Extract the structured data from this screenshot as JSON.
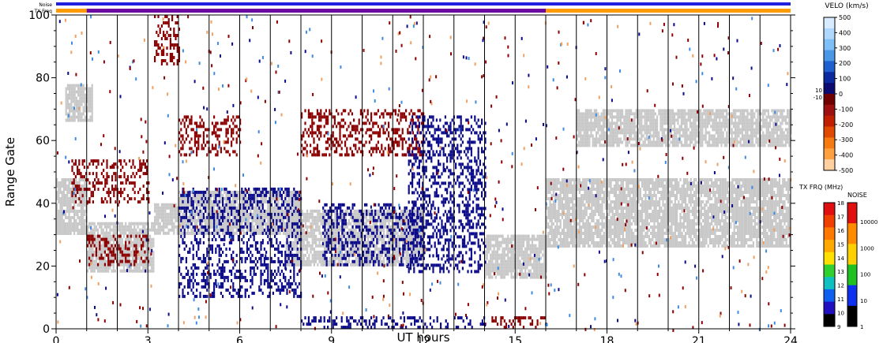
{
  "top_bars": {
    "noise_label": "Noise",
    "txfreq_label": "TX Freq"
  },
  "axes": {
    "xlabel": "UT hours",
    "ylabel": "Range Gate",
    "x_ticks": [
      "0",
      "3",
      "6",
      "9",
      "12",
      "15",
      "18",
      "21",
      "24"
    ],
    "y_ticks": [
      "0",
      "20",
      "40",
      "60",
      "80",
      "100"
    ]
  },
  "velocity_scale": {
    "title": "VELO (km/s)",
    "labels": [
      "500",
      "400",
      "300",
      "200",
      "100",
      "0",
      "-100",
      "-200",
      "-300",
      "-400",
      "-500"
    ],
    "small_labels": [
      "10",
      "-10"
    ]
  },
  "txfreq_scale": {
    "title": "TX FRQ (MHz)",
    "labels": [
      "18",
      "17",
      "16",
      "15",
      "14",
      "13",
      "12",
      "11",
      "10",
      "9"
    ]
  },
  "noise_scale": {
    "title": "NOISE",
    "labels": [
      "10000",
      "1000",
      "100",
      "10",
      "1"
    ]
  },
  "colors": {
    "noise_bar": "#2020e0",
    "txfreq_bar": "#ff9a00",
    "txfreq_bar_mid": "#6a0aa0",
    "ground_scatter": "#c8c8c8",
    "negative_velocity": "#8b0000",
    "positive_velocity": "#0a0a8a"
  },
  "chart_data": {
    "type": "heatmap",
    "title": "",
    "xlabel": "UT hours",
    "ylabel": "Range Gate",
    "xlim": [
      0,
      24
    ],
    "ylim": [
      0,
      100
    ],
    "x_ticks": [
      0,
      3,
      6,
      9,
      12,
      15,
      18,
      21,
      24
    ],
    "y_ticks": [
      0,
      20,
      40,
      60,
      80,
      100
    ],
    "beam_scan_lines_hours": [
      1,
      2,
      3,
      4,
      5,
      6,
      7,
      8,
      9,
      10,
      11,
      12,
      13,
      14,
      15,
      16,
      17,
      18,
      19,
      20,
      21,
      22,
      23,
      24
    ],
    "colorbar": {
      "quantity": "VELO (km/s)",
      "range": [
        -500,
        500
      ]
    },
    "txfreq_bar_segments": [
      {
        "from": 0,
        "to": 1,
        "color": "orange"
      },
      {
        "from": 1,
        "to": 16,
        "color": "purple"
      },
      {
        "from": 16,
        "to": 24,
        "color": "orange"
      }
    ],
    "regions": [
      {
        "kind": "ground_scatter",
        "x": [
          0,
          1
        ],
        "gate": [
          30,
          48
        ]
      },
      {
        "kind": "ground_scatter",
        "x": [
          1,
          3.2
        ],
        "gate": [
          18,
          34
        ]
      },
      {
        "kind": "ground_scatter",
        "x": [
          3.2,
          4
        ],
        "gate": [
          30,
          40
        ]
      },
      {
        "kind": "ground_scatter",
        "x": [
          4,
          8
        ],
        "gate": [
          30,
          44
        ]
      },
      {
        "kind": "ground_scatter",
        "x": [
          7.5,
          12
        ],
        "gate": [
          20,
          38
        ]
      },
      {
        "kind": "ground_scatter",
        "x": [
          14,
          16
        ],
        "gate": [
          16,
          30
        ]
      },
      {
        "kind": "ground_scatter",
        "x": [
          16,
          24
        ],
        "gate": [
          26,
          48
        ]
      },
      {
        "kind": "ground_scatter",
        "x": [
          0.3,
          1.2
        ],
        "gate": [
          66,
          78
        ]
      },
      {
        "kind": "ground_scatter",
        "x": [
          17,
          24
        ],
        "gate": [
          58,
          70
        ]
      },
      {
        "kind": "negative_velocity",
        "x": [
          0.5,
          3
        ],
        "gate": [
          40,
          54
        ]
      },
      {
        "kind": "negative_velocity",
        "x": [
          1,
          3
        ],
        "gate": [
          20,
          30
        ]
      },
      {
        "kind": "negative_velocity",
        "x": [
          3.2,
          4
        ],
        "gate": [
          84,
          100
        ]
      },
      {
        "kind": "negative_velocity",
        "x": [
          4,
          6
        ],
        "gate": [
          55,
          68
        ]
      },
      {
        "kind": "negative_velocity",
        "x": [
          8,
          12
        ],
        "gate": [
          55,
          70
        ]
      },
      {
        "kind": "positive_velocity",
        "x": [
          4,
          8
        ],
        "gate": [
          10,
          45
        ]
      },
      {
        "kind": "positive_velocity",
        "x": [
          8.7,
          12
        ],
        "gate": [
          20,
          40
        ]
      },
      {
        "kind": "positive_velocity",
        "x": [
          11.5,
          14
        ],
        "gate": [
          18,
          68
        ]
      },
      {
        "kind": "positive_velocity",
        "x": [
          8,
          14
        ],
        "gate": [
          0,
          4
        ]
      },
      {
        "kind": "negative_velocity",
        "x": [
          14,
          16
        ],
        "gate": [
          0,
          4
        ]
      }
    ]
  }
}
